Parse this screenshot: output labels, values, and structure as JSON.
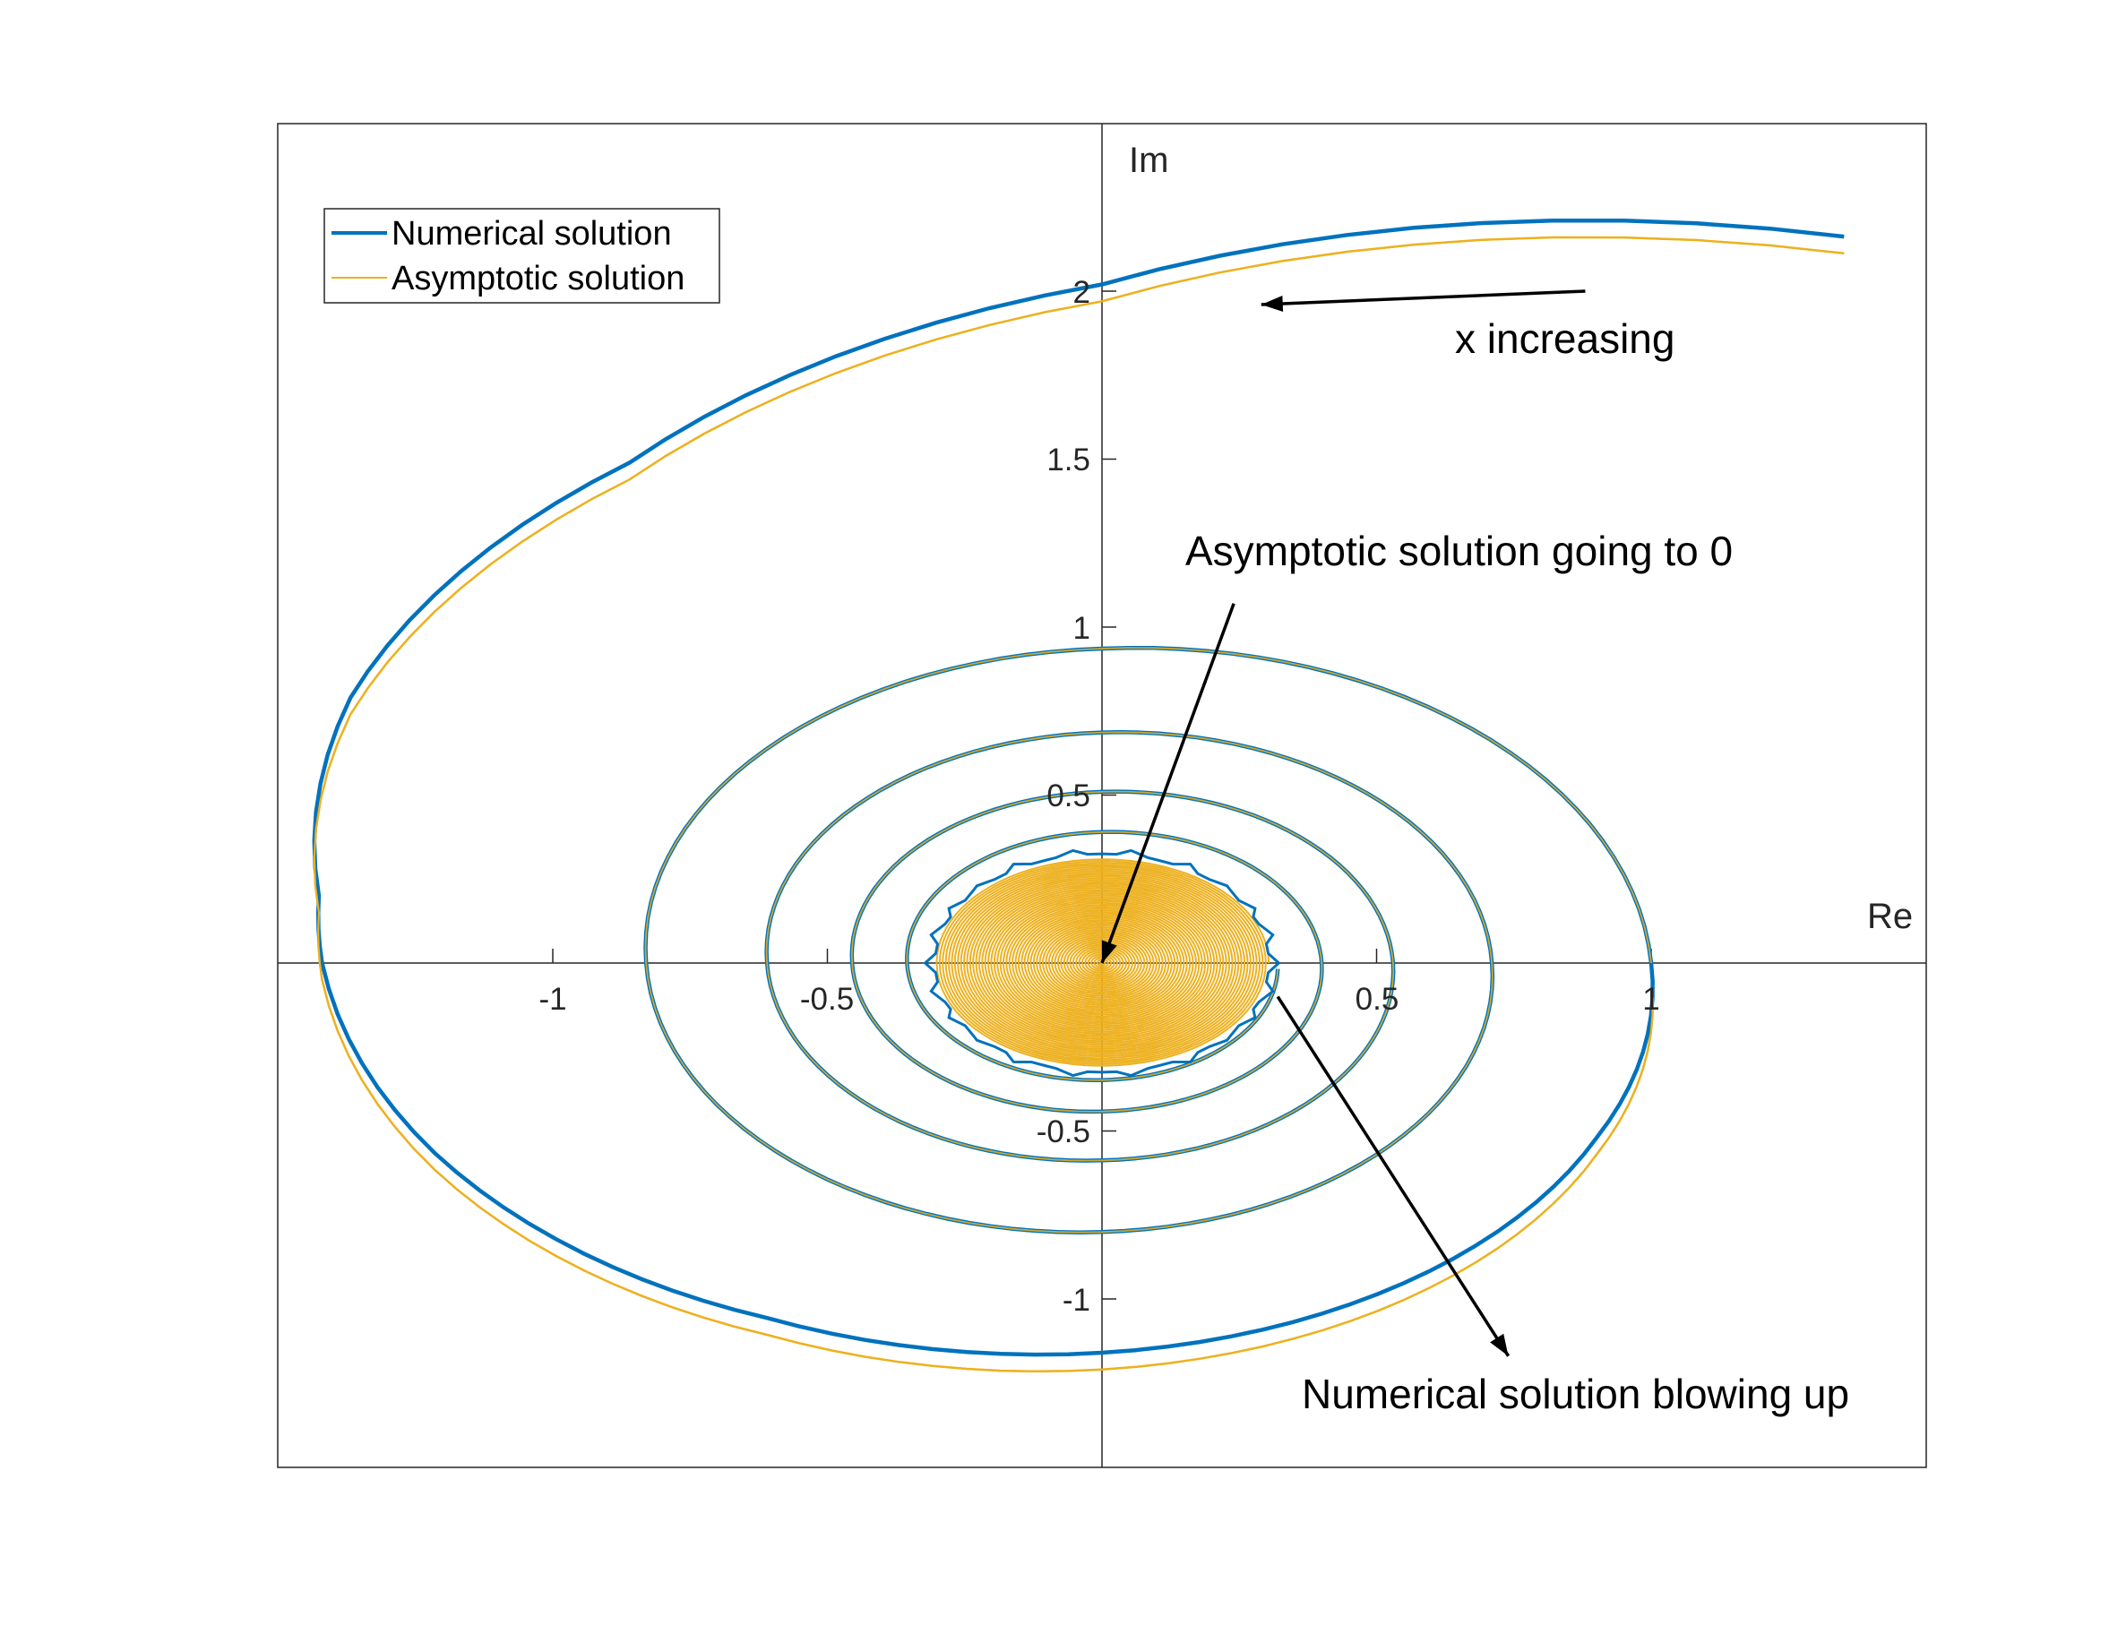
{
  "chart_data": {
    "type": "line",
    "title": "",
    "xlabel": "Re",
    "ylabel": "Im",
    "xlim": [
      -1.5,
      1.5
    ],
    "ylim": [
      -1.5,
      2.5
    ],
    "x_ticks": [
      -1,
      -0.5,
      0.5,
      1
    ],
    "x_tick_labels": [
      "-1",
      "-0.5",
      "0.5",
      "1"
    ],
    "y_ticks": [
      -1,
      -0.5,
      0.5,
      1,
      1.5,
      2
    ],
    "y_tick_labels": [
      "-1",
      "-0.5",
      "0.5",
      "1",
      "1.5",
      "2"
    ],
    "grid": false,
    "legend_position": "top-left",
    "series": [
      {
        "name": "Numerical solution",
        "color": "#0072BD",
        "spiral_start_angle_deg": 358,
        "description_points": [
          [
            1.34,
            2.19
          ],
          [
            1.07,
            2.2
          ],
          [
            0.58,
            2.16
          ],
          [
            0.02,
            2.02
          ],
          [
            -0.34,
            1.85
          ],
          [
            -1.0,
            1.38
          ],
          [
            -1.43,
            0.2
          ],
          [
            -1.42,
            0.0
          ],
          [
            -0.13,
            -1.16
          ],
          [
            1.0,
            0.0
          ],
          [
            0.07,
            0.89
          ],
          [
            -0.83,
            0.0
          ],
          [
            0.0,
            -0.75
          ],
          [
            0.71,
            0.0
          ]
        ],
        "inner_radius_x": 0.31,
        "inner_radius_y": 0.33,
        "behavior_near_origin": "blows up"
      },
      {
        "name": "Asymptotic solution",
        "color": "#EDB120",
        "spiral_start_angle_deg": 357,
        "description_points": [
          [
            1.35,
            2.12
          ],
          [
            0.83,
            2.13
          ],
          [
            0.02,
            2.0
          ],
          [
            -1.0,
            1.37
          ],
          [
            -1.43,
            0.2
          ],
          [
            -1.42,
            0.0
          ],
          [
            -0.13,
            -1.16
          ],
          [
            1.0,
            0.0
          ],
          [
            -0.83,
            0.0
          ],
          [
            0.71,
            0.0
          ],
          [
            0.0,
            0.0
          ]
        ],
        "behavior_near_origin": "goes to 0"
      }
    ],
    "annotations": [
      {
        "text": "x increasing",
        "arrow_from": [
          0.88,
          2.0
        ],
        "arrow_to": [
          0.29,
          1.96
        ]
      },
      {
        "text": "Asymptotic solution going to 0",
        "arrow_from": [
          0.24,
          1.07
        ],
        "arrow_to": [
          0.0,
          0.0
        ]
      },
      {
        "text": "Numerical solution blowing up",
        "arrow_from": [
          0.32,
          -0.1
        ],
        "arrow_to": [
          0.74,
          -1.17
        ]
      }
    ]
  }
}
